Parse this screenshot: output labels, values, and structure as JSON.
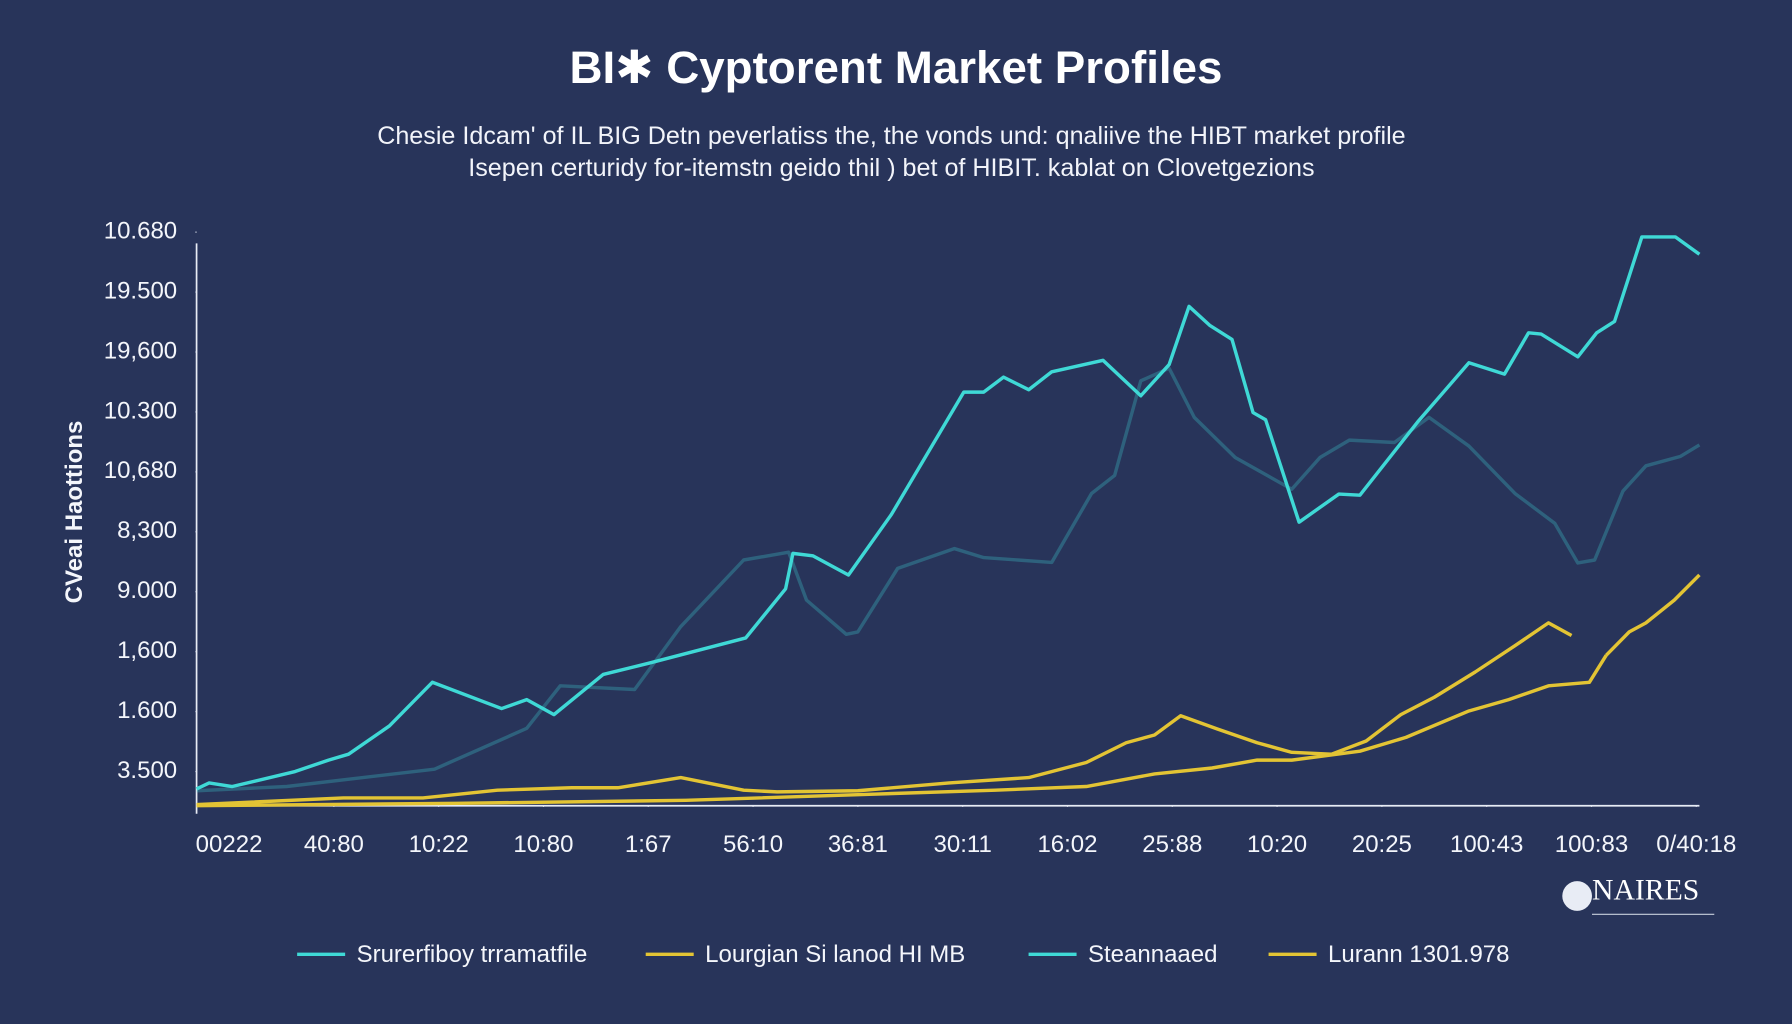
{
  "chart_data": {
    "type": "line",
    "title": "BI✱ Cyptorent Market Profiles",
    "subtitle": [
      "Chesie Idcam' of IL BIG Detn peverlatiss the, the vonds und: qnaliive the HIBT market profile",
      "Isepen certuridy for-itemstn geido thil ) bet of HIBIT. kablat on Clovetgezions"
    ],
    "y_label": "CVeai Haottions",
    "watermark": "NAIRES",
    "grid": false,
    "xlim": [
      -0.31,
      14.03
    ],
    "ylim": [
      0.43,
      10.25
    ],
    "xticks": [
      {
        "value": 0,
        "label": "00222"
      },
      {
        "value": 1,
        "label": "40:80"
      },
      {
        "value": 2,
        "label": "10:22"
      },
      {
        "value": 3,
        "label": "10:80"
      },
      {
        "value": 4,
        "label": "1:67"
      },
      {
        "value": 5,
        "label": "56:10"
      },
      {
        "value": 6,
        "label": "36:81"
      },
      {
        "value": 7,
        "label": "30:11"
      },
      {
        "value": 8,
        "label": "16:02"
      },
      {
        "value": 9,
        "label": "25:88"
      },
      {
        "value": 10,
        "label": "10:20"
      },
      {
        "value": 11,
        "label": "20:25"
      },
      {
        "value": 12,
        "label": "100:43"
      },
      {
        "value": 13,
        "label": "100:83"
      },
      {
        "value": 14,
        "label": "0/40:18"
      }
    ],
    "yticks": [
      {
        "value": 1,
        "label": "3.500"
      },
      {
        "value": 2,
        "label": "1.600"
      },
      {
        "value": 3,
        "label": "1,600"
      },
      {
        "value": 4,
        "label": "9.000"
      },
      {
        "value": 5,
        "label": "8,300"
      },
      {
        "value": 6,
        "label": "10,680"
      },
      {
        "value": 7,
        "label": "10.300"
      },
      {
        "value": 8,
        "label": "19,600"
      },
      {
        "value": 9,
        "label": "19.500"
      },
      {
        "value": 10,
        "label": "10.680"
      }
    ],
    "series": [
      {
        "name": "Srurerfiboy trramatfile",
        "color": "#3fd9d6",
        "opacity": 1,
        "x": [
          -0.31,
          -0.19,
          0.03,
          0.63,
          0.95,
          1.14,
          1.53,
          1.94,
          2.6,
          2.84,
          3.1,
          3.57,
          4.01,
          4.93,
          5.31,
          5.38,
          5.57,
          5.91,
          6.32,
          7.01,
          7.2,
          7.39,
          7.63,
          7.85,
          8.34,
          8.7,
          8.97,
          9.16,
          9.36,
          9.57,
          9.77,
          9.89,
          10.21,
          10.59,
          10.79,
          11.34,
          11.83,
          12.17,
          12.4,
          12.52,
          12.87,
          13.05,
          13.22,
          13.48,
          13.8,
          14.03
        ],
        "values": [
          0.71,
          0.81,
          0.75,
          1.0,
          1.19,
          1.29,
          1.76,
          2.49,
          2.05,
          2.2,
          1.95,
          2.62,
          2.81,
          3.23,
          4.05,
          4.64,
          4.6,
          4.28,
          5.29,
          7.33,
          7.33,
          7.58,
          7.37,
          7.67,
          7.86,
          7.27,
          7.79,
          8.76,
          8.44,
          8.21,
          6.99,
          6.87,
          5.16,
          5.63,
          5.61,
          6.83,
          7.82,
          7.63,
          8.32,
          8.3,
          7.92,
          8.32,
          8.51,
          9.92,
          9.92,
          9.63
        ]
      },
      {
        "name": "Lourgian Si lanod HI MB",
        "color": "#e3c434",
        "opacity": 1,
        "x": [
          -0.31,
          1.09,
          1.85,
          2.56,
          3.27,
          3.71,
          4.31,
          4.91,
          5.23,
          6.0,
          6.87,
          7.63,
          8.18,
          8.56,
          8.83,
          9.08,
          9.43,
          9.81,
          10.14,
          10.52,
          10.85,
          11.18,
          11.5,
          11.89,
          12.27,
          12.59,
          12.81,
          12.95,
          13.14,
          13.36,
          13.52,
          13.79,
          14.03
        ],
        "values": [
          0.45,
          0.56,
          0.56,
          0.69,
          0.73,
          0.73,
          0.9,
          0.69,
          0.66,
          0.68,
          0.81,
          0.9,
          1.15,
          1.48,
          1.61,
          1.93,
          1.71,
          1.48,
          1.32,
          1.29,
          1.51,
          1.95,
          2.24,
          2.66,
          3.1,
          3.48,
          3.27,
          null,
          2.94,
          3.33,
          3.48,
          3.86,
          4.28
        ]
      },
      {
        "name": "Steannaaed",
        "color": "#3fd9d6",
        "opacity": 0.28,
        "x": [
          -0.31,
          0.55,
          1.96,
          2.84,
          3.16,
          3.87,
          4.31,
          4.91,
          5.34,
          5.51,
          5.89,
          6.0,
          6.38,
          6.92,
          7.2,
          7.85,
          8.23,
          8.45,
          8.7,
          8.97,
          9.21,
          9.6,
          10.14,
          10.41,
          10.69,
          11.12,
          11.45,
          11.83,
          12.27,
          12.65,
          12.87,
          13.03,
          13.3,
          13.52,
          13.85,
          14.03
        ],
        "values": [
          0.68,
          0.75,
          1.04,
          1.72,
          2.43,
          2.37,
          3.42,
          4.53,
          4.66,
          3.86,
          3.29,
          3.33,
          4.39,
          4.72,
          4.57,
          4.49,
          5.64,
          5.94,
          7.52,
          7.73,
          6.91,
          6.24,
          5.71,
          6.24,
          6.53,
          6.49,
          6.91,
          6.43,
          5.64,
          5.14,
          4.48,
          4.53,
          5.68,
          6.1,
          6.26,
          6.45
        ]
      },
      {
        "name": "Lurann 1301.978",
        "color": "#e3c434",
        "opacity": 1,
        "x": [
          -0.31,
          2.18,
          4.36,
          6.11,
          7.31,
          8.18,
          8.83,
          9.38,
          9.81,
          10.14,
          10.79,
          11.23,
          11.83,
          12.21,
          12.59,
          12.98,
          13.14
        ],
        "values": [
          0.43,
          0.47,
          0.52,
          0.62,
          0.69,
          0.75,
          0.96,
          1.06,
          1.19,
          1.19,
          1.34,
          1.57,
          2.01,
          2.2,
          2.43,
          2.49,
          2.94
        ]
      }
    ]
  }
}
